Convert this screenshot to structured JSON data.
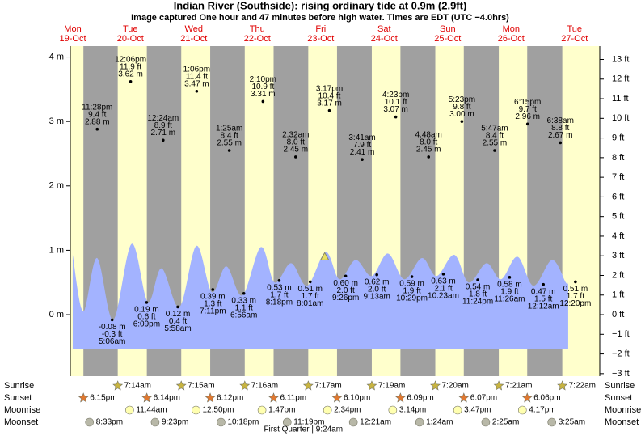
{
  "chart_data": {
    "type": "tide",
    "title": "Indian River (Southside): rising  ordinary tide at 0.9m (2.9ft)",
    "subtitle": "Image captured One hour and 47 minutes before high water. Times are EDT (UTC −4.0hrs)",
    "days": [
      {
        "weekday": "Mon",
        "date": "19-Oct"
      },
      {
        "weekday": "Tue",
        "date": "20-Oct"
      },
      {
        "weekday": "Wed",
        "date": "21-Oct"
      },
      {
        "weekday": "Thu",
        "date": "22-Oct"
      },
      {
        "weekday": "Fri",
        "date": "23-Oct"
      },
      {
        "weekday": "Sat",
        "date": "24-Oct"
      },
      {
        "weekday": "Sun",
        "date": "25-Oct"
      },
      {
        "weekday": "Mon",
        "date": "26-Oct"
      },
      {
        "weekday": "Tue",
        "date": "27-Oct"
      }
    ],
    "ylim": [
      -0.954,
      4.17
    ],
    "yticks": [
      {
        "value": 4,
        "label": "4 m"
      },
      {
        "value": 3,
        "label": "3 m"
      },
      {
        "value": 2,
        "label": "2 m"
      },
      {
        "value": 1,
        "label": "1 m"
      },
      {
        "value": 0,
        "label": "0 m"
      }
    ],
    "y2lim": [
      -3.13,
      13.68
    ],
    "y2ticks": [
      {
        "value": 13,
        "label": "13 ft"
      },
      {
        "value": 12,
        "label": "12 ft"
      },
      {
        "value": 11,
        "label": "11 ft"
      },
      {
        "value": 10,
        "label": "10 ft"
      },
      {
        "value": 9,
        "label": "9 ft"
      },
      {
        "value": 8,
        "label": "8 ft"
      },
      {
        "value": 7,
        "label": "7 ft"
      },
      {
        "value": 6,
        "label": "6 ft"
      },
      {
        "value": 5,
        "label": "5 ft"
      },
      {
        "value": 4,
        "label": "4 ft"
      },
      {
        "value": 3,
        "label": "3 ft"
      },
      {
        "value": 2,
        "label": "2 ft"
      },
      {
        "value": 1,
        "label": "1 ft"
      },
      {
        "value": 0,
        "label": "0 ft"
      },
      {
        "value": -1,
        "label": "−1 ft"
      },
      {
        "value": -2,
        "label": "−2 ft"
      },
      {
        "value": -3,
        "label": "−3 ft"
      }
    ],
    "day_color": "#e00000",
    "night_color": "#a0a0a0",
    "background": "#ffffcc",
    "water": {
      "color": "#a3b3ff",
      "base": -0.54,
      "x": [
        "19-Oct 14:12",
        "19-Oct 18:12",
        "19-Oct 23:24",
        "20-Oct 05:30",
        "20-Oct 12:30",
        "20-Oct 18:36",
        "20-Oct 23:48",
        "21-Oct 06:36",
        "21-Oct 13:00",
        "21-Oct 18:48",
        "22-Oct 00:18",
        "22-Oct 06:24",
        "22-Oct 13:24",
        "22-Oct 18:36",
        "23-Oct 00:48",
        "23-Oct 06:54",
        "23-Oct 13:54",
        "23-Oct 19:06",
        "24-Oct 01:12",
        "24-Oct 07:18",
        "24-Oct 13:24",
        "24-Oct 19:36",
        "25-Oct 02:18",
        "25-Oct 07:48",
        "25-Oct 14:30",
        "25-Oct 20:00",
        "26-Oct 02:42",
        "26-Oct 08:12",
        "26-Oct 14:24",
        "26-Oct 20:30",
        "27-Oct 03:30",
        "27-Oct 08:42",
        "27-Oct 09:36"
      ],
      "values": [
        0.93,
        0.05,
        0.88,
        -0.08,
        1.1,
        0.2,
        0.72,
        0.12,
        1.07,
        0.35,
        0.75,
        0.3,
        1.05,
        0.5,
        0.8,
        0.45,
        0.97,
        0.55,
        0.85,
        0.6,
        0.95,
        0.55,
        0.88,
        0.6,
        0.93,
        0.5,
        0.8,
        0.55,
        0.9,
        0.45,
        0.85,
        0.5,
        0.5
      ]
    },
    "current": {
      "x": "23-Oct 13:30",
      "value": 0.9,
      "color": "#e8e060"
    },
    "tides": {
      "dates": [
        "19-Oct",
        "20-Oct",
        "20-Oct",
        "20-Oct",
        "21-Oct",
        "21-Oct",
        "21-Oct",
        "21-Oct",
        "22-Oct",
        "22-Oct",
        "22-Oct",
        "22-Oct",
        "23-Oct",
        "23-Oct",
        "23-Oct",
        "23-Oct",
        "24-Oct",
        "24-Oct",
        "24-Oct",
        "24-Oct",
        "25-Oct",
        "25-Oct",
        "25-Oct",
        "25-Oct",
        "26-Oct",
        "26-Oct",
        "26-Oct",
        "27-Oct",
        "27-Oct",
        "27-Oct"
      ],
      "times": [
        "11:28pm",
        "5:06am",
        "12:06pm",
        "6:09pm",
        "12:24am",
        "5:58am",
        "1:06pm",
        "7:11pm",
        "1:25am",
        "6:56am",
        "2:10pm",
        "8:18pm",
        "2:32am",
        "8:01am",
        "3:17pm",
        "9:26pm",
        "3:41am",
        "9:13am",
        "4:23pm",
        "10:29pm",
        "4:48am",
        "10:23am",
        "5:23pm",
        "11:24pm",
        "5:47am",
        "11:26am",
        "6:15pm",
        "12:12am",
        "6:38am",
        "12:20pm"
      ],
      "values": [
        2.88,
        -0.08,
        3.62,
        0.19,
        2.71,
        0.12,
        3.47,
        0.39,
        2.55,
        0.33,
        3.31,
        0.53,
        2.45,
        0.51,
        3.17,
        0.6,
        2.41,
        0.62,
        3.07,
        0.59,
        2.45,
        0.63,
        3.0,
        0.54,
        2.55,
        0.58,
        2.96,
        0.47,
        2.67,
        0.51
      ],
      "value_labels": [
        "2.88 m",
        "-0.08 m",
        "3.62 m",
        "0.19 m",
        "2.71 m",
        "0.12 m",
        "3.47 m",
        "0.39 m",
        "2.55 m",
        "0.33 m",
        "3.31 m",
        "0.53 m",
        "2.45 m",
        "0.51 m",
        "3.17 m",
        "0.60 m",
        "2.41 m",
        "0.62 m",
        "3.07 m",
        "0.59 m",
        "2.45 m",
        "0.63 m",
        "3.00 m",
        "0.54 m",
        "2.55 m",
        "0.58 m",
        "2.96 m",
        "0.47 m",
        "2.67 m",
        "0.51 m"
      ],
      "ft": [
        9.4,
        -0.3,
        11.9,
        0.6,
        8.9,
        0.4,
        11.4,
        1.3,
        8.4,
        1.1,
        10.9,
        1.7,
        8.0,
        1.7,
        10.4,
        2.0,
        7.9,
        2.0,
        10.1,
        1.9,
        8.0,
        2.1,
        9.8,
        1.8,
        8.4,
        1.9,
        9.7,
        1.5,
        8.8,
        1.7
      ],
      "ft_labels": [
        "9.4 ft",
        "-0.3 ft",
        "11.9 ft",
        "0.6 ft",
        "8.9 ft",
        "0.4 ft",
        "11.4 ft",
        "1.3 ft",
        "8.4 ft",
        "1.1 ft",
        "10.9 ft",
        "1.7 ft",
        "8.0 ft",
        "1.7 ft",
        "10.4 ft",
        "2.0 ft",
        "7.9 ft",
        "2.0 ft",
        "10.1 ft",
        "1.9 ft",
        "8.0 ft",
        "2.1 ft",
        "9.8 ft",
        "1.8 ft",
        "8.4 ft",
        "1.9 ft",
        "9.7 ft",
        "1.5 ft",
        "8.8 ft",
        "1.7 ft"
      ]
    },
    "sun_moon": [
      {
        "name": "Sunrise",
        "marker": "star",
        "color": "#c8b440",
        "dates": [
          "20-Oct",
          "21-Oct",
          "22-Oct",
          "23-Oct",
          "24-Oct",
          "25-Oct",
          "26-Oct",
          "27-Oct"
        ],
        "times": [
          "7:14am",
          "7:15am",
          "7:16am",
          "7:17am",
          "7:19am",
          "7:20am",
          "7:21am",
          "7:22am"
        ]
      },
      {
        "name": "Sunset",
        "marker": "star",
        "color": "#e07830",
        "dates": [
          "19-Oct",
          "20-Oct",
          "21-Oct",
          "22-Oct",
          "23-Oct",
          "24-Oct",
          "25-Oct",
          "26-Oct"
        ],
        "times": [
          "6:15pm",
          "6:14pm",
          "6:12pm",
          "6:11pm",
          "6:10pm",
          "6:09pm",
          "6:07pm",
          "6:06pm"
        ]
      },
      {
        "name": "Moonrise",
        "marker": "circle",
        "color": "#ffffb0",
        "dates": [
          "20-Oct",
          "21-Oct",
          "22-Oct",
          "23-Oct",
          "24-Oct",
          "25-Oct",
          "26-Oct"
        ],
        "times": [
          "11:44am",
          "12:50pm",
          "1:47pm",
          "2:34pm",
          "3:14pm",
          "3:47pm",
          "4:17pm"
        ]
      },
      {
        "name": "Moonset",
        "marker": "circle",
        "color": "#b8b8a8",
        "dates": [
          "19-Oct",
          "20-Oct",
          "21-Oct",
          "22-Oct",
          "24-Oct",
          "25-Oct",
          "26-Oct",
          "27-Oct"
        ],
        "times": [
          "8:33pm",
          "9:23pm",
          "10:18pm",
          "11:19pm",
          "12:21am",
          "1:24am",
          "2:25am",
          "3:25am"
        ]
      }
    ],
    "moon_phase": {
      "text": "First Quarter | 9:24am",
      "x": "23-Oct 09:24"
    }
  }
}
